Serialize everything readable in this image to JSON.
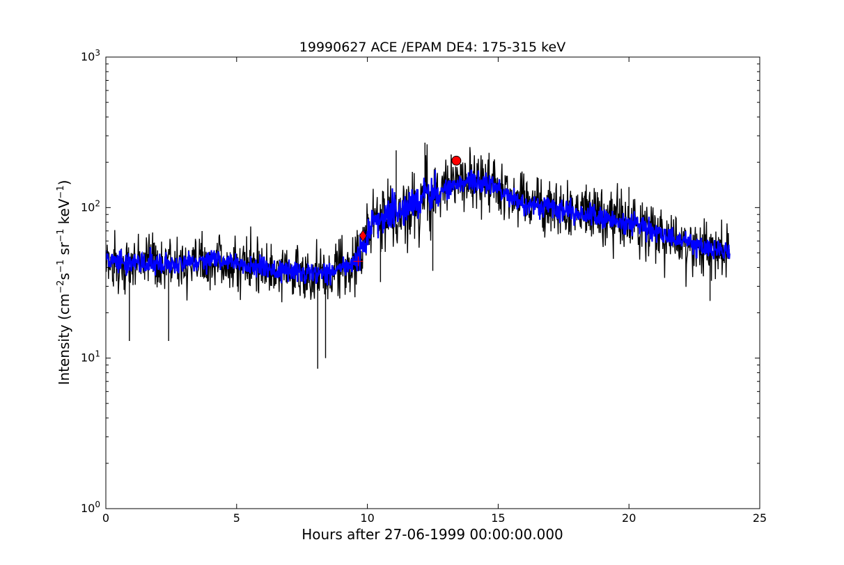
{
  "chart_data": {
    "type": "line",
    "title": "19990627 ACE /EPAM DE4: 175-315 keV",
    "xlabel": "Hours after 27-06-1999 00:00:00.000",
    "ylabel": {
      "prefix": "Intensity (cm",
      "sup1": "−2",
      "mid1": "s",
      "sup2": "−1",
      "mid2": " sr",
      "sup3": "−1",
      "mid3": " keV",
      "sup4": "−1",
      "suffix": ")"
    },
    "xlim": [
      0,
      25
    ],
    "ylim": [
      1,
      1000
    ],
    "yscale": "log",
    "grid": false,
    "x_ticks": [
      0,
      5,
      10,
      15,
      20,
      25
    ],
    "x_tick_labels": [
      "0",
      "5",
      "10",
      "15",
      "20",
      "25"
    ],
    "y_ticks": [
      1,
      10,
      100,
      1000
    ],
    "y_tick_labels": [
      {
        "base": "10",
        "exp": "0"
      },
      {
        "base": "10",
        "exp": "1"
      },
      {
        "base": "10",
        "exp": "2"
      },
      {
        "base": "10",
        "exp": "3"
      }
    ],
    "colors": {
      "raw": "#000000",
      "smoothed": "#0000ff",
      "marker": "#ff0000"
    },
    "series": [
      {
        "name": "",
        "color": "#000000",
        "x": [
          0.0,
          0.8,
          1.6,
          2.4,
          3.2,
          4.0,
          4.8,
          5.6,
          6.4,
          7.2,
          8.0,
          8.8,
          9.5,
          9.8,
          10.2,
          10.8,
          11.5,
          12.2,
          12.8,
          13.4,
          14.0,
          14.6,
          15.2,
          15.8,
          16.4,
          17.0,
          17.6,
          18.2,
          18.8,
          19.4,
          20.0,
          20.6,
          21.2,
          21.8,
          22.4,
          23.0,
          23.85
        ],
        "y": [
          45,
          42,
          44,
          41,
          45,
          44,
          43,
          41,
          38,
          37,
          35,
          37,
          40,
          52,
          80,
          92,
          98,
          115,
          128,
          145,
          150,
          143,
          125,
          110,
          104,
          100,
          95,
          90,
          86,
          82,
          80,
          74,
          68,
          62,
          57,
          54,
          50
        ]
      },
      {
        "name": "",
        "color": "#0000ff",
        "x": [
          0.0,
          0.8,
          1.6,
          2.4,
          3.2,
          4.0,
          4.8,
          5.6,
          6.4,
          7.2,
          8.0,
          8.8,
          9.5,
          9.8,
          10.2,
          10.8,
          11.5,
          12.2,
          12.8,
          13.4,
          14.0,
          14.6,
          15.2,
          15.8,
          16.4,
          17.0,
          17.6,
          18.2,
          18.8,
          19.4,
          20.0,
          20.6,
          21.2,
          21.8,
          22.4,
          23.0,
          23.85
        ],
        "y": [
          44,
          43,
          43,
          42,
          44,
          44,
          43,
          41,
          39,
          38,
          37,
          38,
          42,
          54,
          82,
          92,
          98,
          116,
          128,
          146,
          150,
          143,
          126,
          110,
          104,
          100,
          95,
          90,
          86,
          82,
          80,
          74,
          68,
          62,
          57,
          54,
          50
        ]
      }
    ],
    "spikes": [
      {
        "x": 0.9,
        "y": 13
      },
      {
        "x": 2.4,
        "y": 13
      },
      {
        "x": 8.1,
        "y": 8.5
      },
      {
        "x": 8.4,
        "y": 10
      },
      {
        "x": 11.1,
        "y": 240
      },
      {
        "x": 12.2,
        "y": 270
      },
      {
        "x": 12.5,
        "y": 38
      },
      {
        "x": 10.5,
        "y": 32
      },
      {
        "x": 20.0,
        "y": 137
      },
      {
        "x": 23.1,
        "y": 24
      }
    ],
    "markers": [
      {
        "shape": "plus",
        "x": 9.65,
        "y": 44
      },
      {
        "shape": "diamond",
        "x": 9.83,
        "y": 65
      },
      {
        "shape": "circle",
        "x": 13.4,
        "y": 205
      }
    ]
  }
}
